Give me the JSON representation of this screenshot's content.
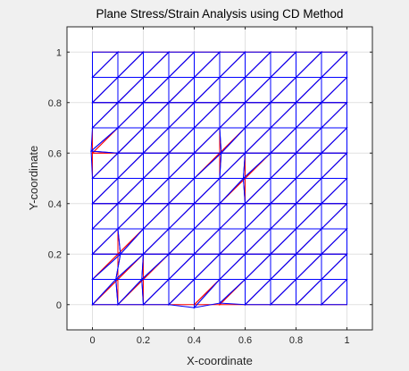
{
  "chart_data": {
    "type": "mesh",
    "title": "Plane Stress/Strain Analysis using CD Method",
    "xlabel": "X-coordinate",
    "ylabel": "Y-coordinate",
    "xlim": [
      -0.1,
      1.1
    ],
    "ylim": [
      -0.1,
      1.1
    ],
    "xticks": [
      0,
      0.2,
      0.4,
      0.6,
      0.8,
      1
    ],
    "yticks": [
      0,
      0.2,
      0.4,
      0.6,
      0.8,
      1
    ],
    "xtick_labels": [
      "0",
      "0.2",
      "0.4",
      "0.6",
      "0.8",
      "1"
    ],
    "ytick_labels": [
      "0",
      "0.2",
      "0.4",
      "0.6",
      "0.8",
      "1"
    ],
    "grid": true,
    "mesh": {
      "nodes_per_side": 11,
      "spacing": 0.1,
      "triangulation": "each square cell split by diagonal from bottom-left to top-right"
    },
    "series": [
      {
        "role": "undeformed mesh",
        "color": "#ff0000"
      },
      {
        "role": "deformed mesh",
        "color": "#0000ff"
      }
    ],
    "deformed_offsets_sample": [
      {
        "node": [
          0.0,
          0.6
        ],
        "dx": -0.005,
        "dy": 0.008
      },
      {
        "node": [
          0.1,
          0.1
        ],
        "dx": -0.008,
        "dy": 0.0
      },
      {
        "node": [
          0.1,
          0.2
        ],
        "dx": 0.01,
        "dy": 0.0
      },
      {
        "node": [
          0.2,
          0.1
        ],
        "dx": -0.006,
        "dy": 0.0
      },
      {
        "node": [
          0.4,
          0.0
        ],
        "dx": 0.0,
        "dy": -0.012
      },
      {
        "node": [
          0.5,
          0.6
        ],
        "dx": 0.006,
        "dy": 0.0
      },
      {
        "node": [
          0.6,
          0.5
        ],
        "dx": -0.007,
        "dy": 0.0
      },
      {
        "node": [
          0.5,
          0.0
        ],
        "dx": 0.0,
        "dy": 0.006
      }
    ]
  }
}
